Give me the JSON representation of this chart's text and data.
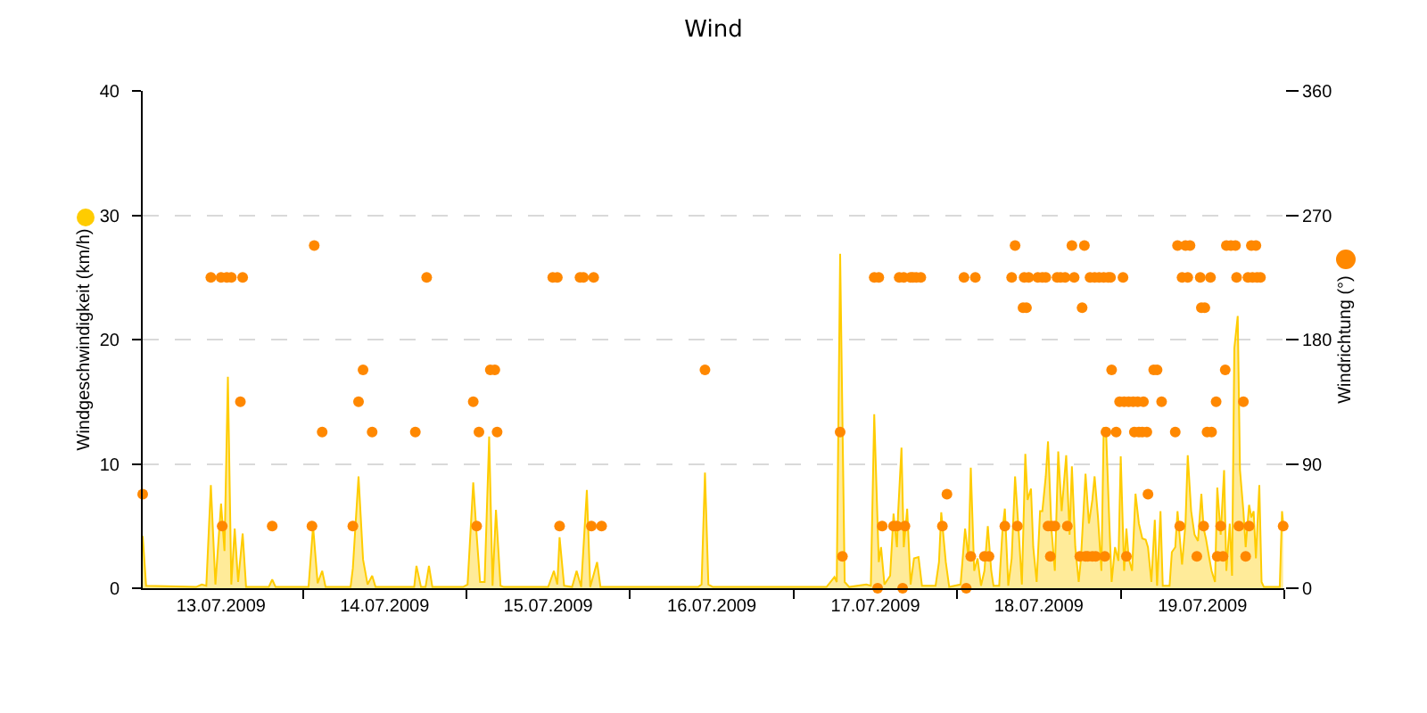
{
  "chart_data": {
    "type": "area",
    "title": "Wind",
    "ylabel": "Windgeschwindigkeit (km/h)",
    "y2label": "Windrichtung (°)",
    "xlim": [
      "2009-07-13T00:30",
      "2009-07-20T00:00"
    ],
    "xticks": [
      {
        "value": "2009-07-13T12:00",
        "label": "13.07.2009"
      },
      {
        "value": "2009-07-14T12:00",
        "label": "14.07.2009"
      },
      {
        "value": "2009-07-15T12:00",
        "label": "15.07.2009"
      },
      {
        "value": "2009-07-16T12:00",
        "label": "16.07.2009"
      },
      {
        "value": "2009-07-17T12:00",
        "label": "17.07.2009"
      },
      {
        "value": "2009-07-18T12:00",
        "label": "18.07.2009"
      },
      {
        "value": "2009-07-19T12:00",
        "label": "19.07.2009"
      },
      {
        "value": "2009-07-14T00:00",
        "label": null
      },
      {
        "value": "2009-07-15T00:00",
        "label": null
      },
      {
        "value": "2009-07-16T00:00",
        "label": null
      },
      {
        "value": "2009-07-17T00:00",
        "label": null
      },
      {
        "value": "2009-07-18T00:00",
        "label": null
      },
      {
        "value": "2009-07-19T00:00",
        "label": null
      },
      {
        "value": "2009-07-20T00:00",
        "label": null
      }
    ],
    "ylim": [
      0,
      40
    ],
    "yticks": [
      0,
      10,
      20,
      30,
      40
    ],
    "y2lim": [
      0,
      360
    ],
    "y2ticks": [
      0,
      90,
      180,
      270,
      360
    ],
    "grid": "y",
    "series": [
      {
        "color": "#ffcc00",
        "x": [
          "2009-07-13T00:30",
          "2009-07-13T01:00",
          "2009-07-13T08:20",
          "2009-07-13T09:10",
          "2009-07-13T09:50",
          "2009-07-13T10:30",
          "2009-07-13T11:10",
          "2009-07-13T12:00",
          "2009-07-13T12:30",
          "2009-07-13T13:00",
          "2009-07-13T13:30",
          "2009-07-13T14:00",
          "2009-07-13T14:30",
          "2009-07-13T15:10",
          "2009-07-13T15:40",
          "2009-07-13T19:00",
          "2009-07-13T19:30",
          "2009-07-13T20:00",
          "2009-07-14T00:50",
          "2009-07-14T01:30",
          "2009-07-14T02:10",
          "2009-07-14T02:50",
          "2009-07-14T03:20",
          "2009-07-14T07:00",
          "2009-07-14T07:20",
          "2009-07-14T08:10",
          "2009-07-14T08:50",
          "2009-07-14T09:30",
          "2009-07-14T10:10",
          "2009-07-14T10:40",
          "2009-07-14T16:20",
          "2009-07-14T16:40",
          "2009-07-14T17:20",
          "2009-07-14T18:00",
          "2009-07-14T18:30",
          "2009-07-14T19:00",
          "2009-07-14T23:30",
          "2009-07-15T00:10",
          "2009-07-15T01:00",
          "2009-07-15T01:30",
          "2009-07-15T02:00",
          "2009-07-15T02:40",
          "2009-07-15T03:20",
          "2009-07-15T03:50",
          "2009-07-15T04:20",
          "2009-07-15T05:00",
          "2009-07-15T05:30",
          "2009-07-15T12:00",
          "2009-07-15T12:50",
          "2009-07-15T13:20",
          "2009-07-15T13:40",
          "2009-07-15T14:20",
          "2009-07-15T15:30",
          "2009-07-15T16:10",
          "2009-07-15T16:50",
          "2009-07-15T17:40",
          "2009-07-15T18:10",
          "2009-07-15T19:10",
          "2009-07-15T19:40",
          "2009-07-16T10:00",
          "2009-07-16T10:30",
          "2009-07-16T11:00",
          "2009-07-16T11:30",
          "2009-07-16T12:10",
          "2009-07-17T04:50",
          "2009-07-17T06:00",
          "2009-07-17T06:20",
          "2009-07-17T06:50",
          "2009-07-17T07:30",
          "2009-07-17T08:10",
          "2009-07-17T10:40",
          "2009-07-17T11:20",
          "2009-07-17T11:50",
          "2009-07-17T12:30",
          "2009-07-17T12:50",
          "2009-07-17T13:20",
          "2009-07-17T14:10",
          "2009-07-17T14:40",
          "2009-07-17T15:10",
          "2009-07-17T15:20",
          "2009-07-17T15:50",
          "2009-07-17T16:10",
          "2009-07-17T16:40",
          "2009-07-17T17:10",
          "2009-07-17T17:40",
          "2009-07-17T18:20",
          "2009-07-17T18:50",
          "2009-07-17T20:50",
          "2009-07-17T21:20",
          "2009-07-17T21:40",
          "2009-07-17T22:20",
          "2009-07-17T22:50",
          "2009-07-18T00:30",
          "2009-07-18T01:10",
          "2009-07-18T01:40",
          "2009-07-18T02:00",
          "2009-07-18T02:30",
          "2009-07-18T03:00",
          "2009-07-18T03:30",
          "2009-07-18T04:00",
          "2009-07-18T04:30",
          "2009-07-18T05:00",
          "2009-07-18T05:20",
          "2009-07-18T06:10",
          "2009-07-18T06:40",
          "2009-07-18T07:00",
          "2009-07-18T07:30",
          "2009-07-18T08:00",
          "2009-07-18T08:30",
          "2009-07-18T09:00",
          "2009-07-18T09:30",
          "2009-07-18T10:00",
          "2009-07-18T10:20",
          "2009-07-18T10:50",
          "2009-07-18T11:10",
          "2009-07-18T11:40",
          "2009-07-18T12:10",
          "2009-07-18T12:30",
          "2009-07-18T13:00",
          "2009-07-18T13:20",
          "2009-07-18T13:50",
          "2009-07-18T14:20",
          "2009-07-18T14:50",
          "2009-07-18T15:20",
          "2009-07-18T16:00",
          "2009-07-18T16:30",
          "2009-07-18T16:50",
          "2009-07-18T17:20",
          "2009-07-18T17:50",
          "2009-07-18T18:10",
          "2009-07-18T18:50",
          "2009-07-18T19:20",
          "2009-07-18T19:50",
          "2009-07-18T20:10",
          "2009-07-18T20:40",
          "2009-07-18T21:10",
          "2009-07-18T21:30",
          "2009-07-18T21:50",
          "2009-07-18T22:20",
          "2009-07-18T22:40",
          "2009-07-18T23:10",
          "2009-07-18T23:40",
          "2009-07-19T00:00",
          "2009-07-19T00:30",
          "2009-07-19T00:50",
          "2009-07-19T01:10",
          "2009-07-19T01:40",
          "2009-07-19T02:10",
          "2009-07-19T02:40",
          "2009-07-19T03:10",
          "2009-07-19T03:40",
          "2009-07-19T04:00",
          "2009-07-19T04:30",
          "2009-07-19T05:00",
          "2009-07-19T05:20",
          "2009-07-19T05:50",
          "2009-07-19T06:10",
          "2009-07-19T07:10",
          "2009-07-19T07:30",
          "2009-07-19T08:00",
          "2009-07-19T08:20",
          "2009-07-19T09:00",
          "2009-07-19T09:30",
          "2009-07-19T09:50",
          "2009-07-19T10:20",
          "2009-07-19T10:50",
          "2009-07-19T11:20",
          "2009-07-19T11:50",
          "2009-07-19T12:10",
          "2009-07-19T12:30",
          "2009-07-19T13:00",
          "2009-07-19T13:20",
          "2009-07-19T13:50",
          "2009-07-19T14:10",
          "2009-07-19T14:40",
          "2009-07-19T15:10",
          "2009-07-19T15:30",
          "2009-07-19T16:00",
          "2009-07-19T16:20",
          "2009-07-19T16:40",
          "2009-07-19T17:10",
          "2009-07-19T17:30",
          "2009-07-19T18:00",
          "2009-07-19T18:20",
          "2009-07-19T18:50",
          "2009-07-19T19:10",
          "2009-07-19T19:30",
          "2009-07-19T19:50",
          "2009-07-19T20:20",
          "2009-07-19T20:40",
          "2009-07-19T21:00",
          "2009-07-19T23:20",
          "2009-07-19T23:40",
          "2009-07-19T23:50"
        ],
        "values": [
          4.2,
          0.2,
          0.1,
          0.3,
          0.2,
          8.3,
          0.3,
          6.8,
          3.0,
          17.0,
          0.3,
          4.8,
          0.5,
          4.4,
          0.1,
          0.1,
          0.7,
          0.1,
          0.1,
          5.0,
          0.4,
          1.4,
          0.1,
          0.1,
          1.6,
          9.0,
          2.3,
          0.3,
          1.0,
          0.1,
          0.1,
          1.8,
          0.1,
          0.1,
          1.8,
          0.1,
          0.1,
          0.3,
          8.5,
          4.3,
          0.5,
          0.5,
          12.2,
          0.2,
          6.3,
          0.2,
          0.1,
          0.1,
          1.4,
          0.3,
          4.1,
          0.2,
          0.1,
          1.4,
          0.1,
          7.9,
          0.1,
          2.1,
          0.1,
          0.1,
          0.3,
          9.3,
          0.3,
          0.1,
          0.1,
          0.9,
          0.5,
          26.9,
          0.5,
          0.1,
          0.3,
          0.2,
          14.0,
          2.1,
          3.3,
          0.3,
          1.0,
          6.0,
          3.3,
          6.0,
          11.3,
          3.3,
          6.4,
          0.3,
          2.4,
          2.5,
          0.2,
          0.2,
          2.1,
          6.1,
          2.1,
          0.1,
          0.3,
          4.8,
          2.4,
          9.7,
          1.4,
          2.4,
          0.2,
          1.4,
          5.0,
          1.4,
          0.2,
          0.2,
          4.8,
          6.4,
          0.2,
          2.4,
          9.0,
          4.8,
          0.3,
          10.8,
          7.1,
          8.0,
          3.3,
          0.5,
          6.2,
          6.2,
          9.0,
          11.8,
          4.8,
          1.4,
          11.0,
          6.2,
          10.7,
          4.3,
          9.8,
          3.3,
          0.5,
          2.4,
          9.2,
          5.2,
          7.1,
          9.0,
          5.7,
          1.4,
          12.9,
          12.9,
          5.2,
          0.5,
          3.3,
          2.2,
          10.6,
          1.4,
          4.8,
          2.4,
          1.4,
          7.6,
          5.2,
          4.0,
          3.9,
          3.3,
          0.5,
          5.5,
          0.2,
          6.2,
          0.2,
          0.2,
          2.9,
          3.3,
          6.2,
          1.9,
          5.2,
          10.7,
          6.2,
          4.3,
          3.8,
          7.6,
          4.8,
          4.0,
          2.4,
          1.4,
          0.5,
          8.1,
          4.3,
          9.5,
          1.4,
          5.2,
          1.0,
          19.3,
          21.9,
          9.5,
          6.2,
          3.3,
          6.7,
          5.7,
          6.2,
          2.4,
          8.3,
          0.5,
          0.1,
          0.1,
          6.2,
          5.2
        ]
      },
      {
        "type": "scatter",
        "axis": "y2",
        "color": "#ff8800",
        "marker": "circle",
        "x": [
          "2009-07-13T00:30",
          "2009-07-13T10:30",
          "2009-07-13T12:00",
          "2009-07-13T12:10",
          "2009-07-13T12:50",
          "2009-07-13T13:30",
          "2009-07-13T14:50",
          "2009-07-13T15:10",
          "2009-07-13T19:30",
          "2009-07-14T01:20",
          "2009-07-14T01:40",
          "2009-07-14T02:50",
          "2009-07-14T07:20",
          "2009-07-14T08:10",
          "2009-07-14T08:50",
          "2009-07-14T10:10",
          "2009-07-14T16:30",
          "2009-07-14T18:10",
          "2009-07-15T01:00",
          "2009-07-15T01:30",
          "2009-07-15T01:50",
          "2009-07-15T03:30",
          "2009-07-15T04:10",
          "2009-07-15T04:30",
          "2009-07-15T12:40",
          "2009-07-15T13:20",
          "2009-07-15T13:40",
          "2009-07-15T16:40",
          "2009-07-15T17:10",
          "2009-07-15T18:20",
          "2009-07-15T18:40",
          "2009-07-15T19:50",
          "2009-07-16T11:00",
          "2009-07-17T06:50",
          "2009-07-17T07:10",
          "2009-07-17T11:50",
          "2009-07-17T12:20",
          "2009-07-17T12:30",
          "2009-07-17T13:00",
          "2009-07-17T14:40",
          "2009-07-17T15:10",
          "2009-07-17T15:30",
          "2009-07-17T16:00",
          "2009-07-17T16:10",
          "2009-07-17T16:20",
          "2009-07-17T17:10",
          "2009-07-17T17:30",
          "2009-07-17T18:00",
          "2009-07-17T18:40",
          "2009-07-17T21:50",
          "2009-07-17T22:30",
          "2009-07-18T01:00",
          "2009-07-18T01:20",
          "2009-07-18T02:00",
          "2009-07-18T02:40",
          "2009-07-18T04:00",
          "2009-07-18T04:40",
          "2009-07-18T07:00",
          "2009-07-18T08:00",
          "2009-07-18T08:30",
          "2009-07-18T08:50",
          "2009-07-18T09:40",
          "2009-07-18T09:50",
          "2009-07-18T10:10",
          "2009-07-18T10:30",
          "2009-07-18T11:50",
          "2009-07-18T12:30",
          "2009-07-18T13:00",
          "2009-07-18T13:20",
          "2009-07-18T13:40",
          "2009-07-18T13:50",
          "2009-07-18T14:20",
          "2009-07-18T14:40",
          "2009-07-18T15:10",
          "2009-07-18T15:50",
          "2009-07-18T16:10",
          "2009-07-18T16:50",
          "2009-07-18T17:10",
          "2009-07-18T18:00",
          "2009-07-18T18:20",
          "2009-07-18T18:40",
          "2009-07-18T18:50",
          "2009-07-18T19:10",
          "2009-07-18T19:30",
          "2009-07-18T19:50",
          "2009-07-18T20:10",
          "2009-07-18T20:20",
          "2009-07-18T20:50",
          "2009-07-18T21:30",
          "2009-07-18T21:40",
          "2009-07-18T21:50",
          "2009-07-18T22:10",
          "2009-07-18T22:30",
          "2009-07-18T22:40",
          "2009-07-18T23:20",
          "2009-07-18T23:50",
          "2009-07-19T00:20",
          "2009-07-19T00:30",
          "2009-07-19T00:50",
          "2009-07-19T01:10",
          "2009-07-19T01:50",
          "2009-07-19T02:00",
          "2009-07-19T02:30",
          "2009-07-19T02:40",
          "2009-07-19T03:10",
          "2009-07-19T03:20",
          "2009-07-19T03:50",
          "2009-07-19T04:00",
          "2009-07-19T04:50",
          "2009-07-19T05:20",
          "2009-07-19T06:00",
          "2009-07-19T08:00",
          "2009-07-19T08:20",
          "2009-07-19T08:40",
          "2009-07-19T09:00",
          "2009-07-19T09:30",
          "2009-07-19T09:50",
          "2009-07-19T10:10",
          "2009-07-19T11:10",
          "2009-07-19T11:40",
          "2009-07-19T11:50",
          "2009-07-19T12:10",
          "2009-07-19T12:20",
          "2009-07-19T12:40",
          "2009-07-19T13:10",
          "2009-07-19T13:20",
          "2009-07-19T14:00",
          "2009-07-19T14:10",
          "2009-07-19T14:40",
          "2009-07-19T15:00",
          "2009-07-19T15:20",
          "2009-07-19T15:30",
          "2009-07-19T16:10",
          "2009-07-19T16:50",
          "2009-07-19T17:00",
          "2009-07-19T17:20",
          "2009-07-19T18:00",
          "2009-07-19T18:20",
          "2009-07-19T18:40",
          "2009-07-19T18:50",
          "2009-07-19T19:10",
          "2009-07-19T19:20",
          "2009-07-19T19:50",
          "2009-07-19T20:00",
          "2009-07-19T20:30",
          "2009-07-19T23:50"
        ],
        "values": [
          68,
          225,
          225,
          45,
          225,
          225,
          135,
          225,
          45,
          45,
          248,
          113,
          45,
          135,
          158,
          113,
          113,
          225,
          135,
          45,
          113,
          158,
          158,
          113,
          225,
          225,
          45,
          225,
          225,
          45,
          225,
          45,
          158,
          113,
          23,
          225,
          0,
          225,
          45,
          45,
          45,
          225,
          0,
          225,
          45,
          225,
          225,
          225,
          225,
          45,
          68,
          225,
          0,
          23,
          225,
          23,
          23,
          45,
          225,
          248,
          45,
          203,
          225,
          203,
          225,
          225,
          225,
          225,
          45,
          23,
          45,
          45,
          225,
          225,
          225,
          45,
          248,
          225,
          23,
          203,
          248,
          23,
          23,
          225,
          23,
          225,
          23,
          225,
          225,
          23,
          113,
          225,
          225,
          158,
          113,
          135,
          225,
          135,
          23,
          135,
          135,
          113,
          135,
          113,
          113,
          135,
          113,
          68,
          158,
          158,
          135,
          113,
          248,
          45,
          225,
          248,
          225,
          248,
          23,
          225,
          203,
          45,
          203,
          113,
          225,
          113,
          135,
          23,
          45,
          23,
          158,
          248,
          248,
          248,
          225,
          45,
          135,
          23,
          225,
          45,
          248,
          225,
          248,
          225,
          225,
          45
        ]
      }
    ]
  }
}
